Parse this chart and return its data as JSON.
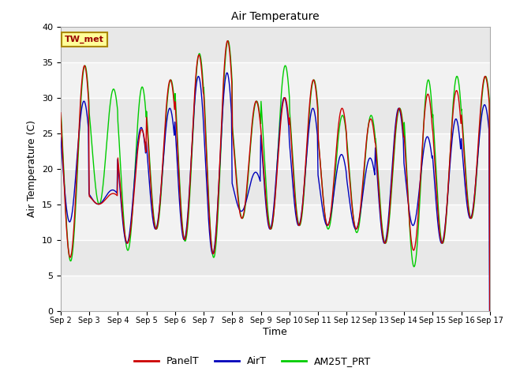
{
  "title": "Air Temperature",
  "ylabel": "Air Temperature (C)",
  "xlabel": "Time",
  "annotation": "TW_met",
  "legend_labels": [
    "PanelT",
    "AirT",
    "AM25T_PRT"
  ],
  "legend_colors": [
    "#cc0000",
    "#0000bb",
    "#00cc00"
  ],
  "line_colors": {
    "PanelT": "#cc0000",
    "AirT": "#0000bb",
    "AM25T_PRT": "#00cc00"
  },
  "ylim": [
    0,
    40
  ],
  "yticks": [
    0,
    5,
    10,
    15,
    20,
    25,
    30,
    35,
    40
  ],
  "bg_color": "#e8e8e8",
  "stripe_color": "#d8d8d8",
  "fig_bg": "#ffffff",
  "points_per_day": 96,
  "xtick_labels": [
    "Sep 2",
    "Sep 3",
    "Sep 4",
    "Sep 5",
    "Sep 6",
    "Sep 7",
    "Sep 8",
    "Sep 9",
    "Sep 10",
    "Sep 11",
    "Sep 12",
    "Sep 13",
    "Sep 14",
    "Sep 15",
    "Sep 16",
    "Sep 17"
  ]
}
